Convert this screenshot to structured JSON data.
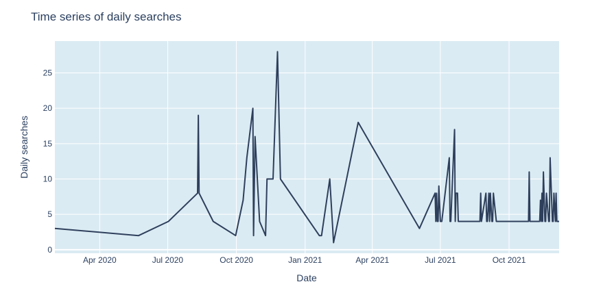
{
  "chart_data": {
    "type": "line",
    "title": "Time series of daily searches",
    "xlabel": "Date",
    "ylabel": "Daily searches",
    "x_tick_labels": [
      "Apr 2020",
      "Jul 2020",
      "Oct 2020",
      "Jan 2021",
      "Apr 2021",
      "Jul 2021",
      "Oct 2021"
    ],
    "x_tick_dates": [
      "2020-04-01",
      "2020-07-01",
      "2020-10-01",
      "2021-01-01",
      "2021-04-01",
      "2021-07-01",
      "2021-10-01"
    ],
    "y_ticks": [
      0,
      5,
      10,
      15,
      20,
      25
    ],
    "xlim": [
      "2020-02-01",
      "2021-12-07"
    ],
    "ylim": [
      -0.5,
      29.5
    ],
    "grid": true,
    "colors": {
      "plot_bg": "#dbebf3",
      "line": "#2e3f5c",
      "grid": "#ffffff"
    },
    "series": [
      {
        "x": [
          "2020-02-01",
          "2020-05-23",
          "2020-07-02",
          "2020-08-10",
          "2020-08-11",
          "2020-08-12",
          "2020-08-31",
          "2020-09-30",
          "2020-10-10",
          "2020-10-15",
          "2020-10-23",
          "2020-10-24",
          "2020-10-26",
          "2020-11-01",
          "2020-11-09",
          "2020-11-11",
          "2020-11-19",
          "2020-11-25",
          "2020-11-29",
          "2021-01-20",
          "2021-01-23",
          "2021-02-03",
          "2021-02-08",
          "2021-03-13",
          "2021-06-03",
          "2021-06-24",
          "2021-06-25",
          "2021-06-26",
          "2021-06-27",
          "2021-06-28",
          "2021-06-29",
          "2021-07-01",
          "2021-07-02",
          "2021-07-03",
          "2021-07-13",
          "2021-07-14",
          "2021-07-15",
          "2021-07-20",
          "2021-07-21",
          "2021-07-22",
          "2021-07-24",
          "2021-07-25",
          "2021-07-26",
          "2021-08-23",
          "2021-08-24",
          "2021-08-25",
          "2021-08-31",
          "2021-09-01",
          "2021-09-02",
          "2021-09-04",
          "2021-09-05",
          "2021-09-06",
          "2021-09-08",
          "2021-09-09",
          "2021-09-10",
          "2021-09-14",
          "2021-09-15",
          "2021-09-16",
          "2021-10-27",
          "2021-10-28",
          "2021-10-29",
          "2021-11-11",
          "2021-11-12",
          "2021-11-13",
          "2021-11-14",
          "2021-11-15",
          "2021-11-16",
          "2021-11-18",
          "2021-11-19",
          "2021-11-20",
          "2021-11-23",
          "2021-11-24",
          "2021-11-25",
          "2021-11-28",
          "2021-11-29",
          "2021-11-30",
          "2021-12-02",
          "2021-12-03",
          "2021-12-04",
          "2021-12-07"
        ],
        "y": [
          3,
          2,
          4,
          8,
          19,
          8,
          4,
          2,
          7,
          13,
          20,
          2,
          16,
          4,
          2,
          10,
          10,
          28,
          10,
          2,
          2,
          10,
          1,
          18,
          3,
          8,
          4,
          8,
          4,
          4,
          9,
          4,
          4,
          4,
          13,
          4,
          4,
          17,
          4,
          8,
          8,
          4,
          4,
          4,
          8,
          4,
          8,
          4,
          4,
          8,
          4,
          8,
          4,
          4,
          8,
          4,
          4,
          4,
          4,
          11,
          4,
          4,
          7,
          4,
          8,
          4,
          11,
          4,
          4,
          8,
          4,
          4,
          13,
          4,
          4,
          8,
          4,
          8,
          4,
          4
        ]
      }
    ]
  }
}
